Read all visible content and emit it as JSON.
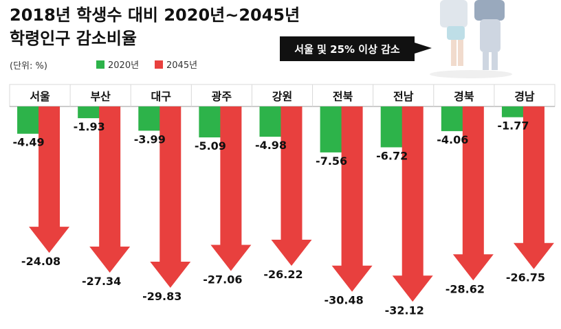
{
  "chart_data": {
    "type": "bar",
    "title_line1": "2018년 학생수 대비 2020년~2045년",
    "title_line2": "학령인구 감소비율",
    "unit": "(단위: %)",
    "callout": "서울 및 25% 이상 감소",
    "categories": [
      "서울",
      "부산",
      "대구",
      "광주",
      "강원",
      "전북",
      "전남",
      "경북",
      "경남"
    ],
    "series": [
      {
        "name": "2020년",
        "color": "#2db34a",
        "values": [
          -4.49,
          -1.93,
          -3.99,
          -5.09,
          -4.98,
          -7.56,
          -6.72,
          -4.06,
          -1.77
        ],
        "labels": [
          "-4.49",
          "-1.93",
          "-3.99",
          "-5.09",
          "-4.98",
          "-7.56",
          "-6.72",
          "-4.06",
          "-1.77"
        ]
      },
      {
        "name": "2045년",
        "color": "#e8403e",
        "values": [
          -24.08,
          -27.34,
          -29.83,
          -27.06,
          -26.22,
          -30.48,
          -32.12,
          -28.62,
          -26.75
        ],
        "labels": [
          "-24.08",
          "-27.34",
          "-29.83",
          "-27.06",
          "-26.22",
          "-30.48",
          "-32.12",
          "-28.62",
          "-26.75"
        ]
      }
    ],
    "ylim": [
      -33,
      0
    ],
    "legend_position": "top-left",
    "grid": false
  }
}
